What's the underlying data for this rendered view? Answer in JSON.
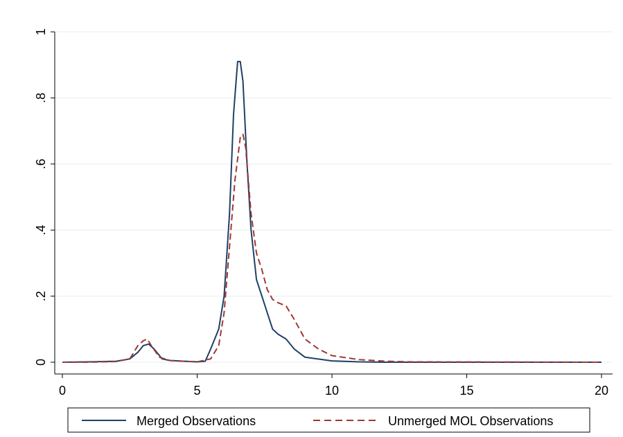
{
  "chart_data": {
    "type": "line",
    "title": "",
    "xlabel": "",
    "ylabel": "",
    "xlim": [
      0,
      20
    ],
    "ylim": [
      0,
      1
    ],
    "xticks": [
      0,
      5,
      10,
      15,
      20
    ],
    "yticks": [
      0,
      0.2,
      0.4,
      0.6,
      0.8,
      1
    ],
    "ytick_labels": [
      "0",
      ".2",
      ".4",
      ".6",
      ".8",
      "1"
    ],
    "grid": true,
    "legend_position": "bottom",
    "series": [
      {
        "name": "Merged Observations",
        "color": "#1f3f66",
        "dash": "solid",
        "points": [
          [
            0,
            0
          ],
          [
            1,
            0.001
          ],
          [
            2,
            0.003
          ],
          [
            2.5,
            0.01
          ],
          [
            2.8,
            0.03
          ],
          [
            3.0,
            0.05
          ],
          [
            3.2,
            0.055
          ],
          [
            3.4,
            0.04
          ],
          [
            3.7,
            0.01
          ],
          [
            4.0,
            0.005
          ],
          [
            5.0,
            0.001
          ],
          [
            5.3,
            0.003
          ],
          [
            5.5,
            0.04
          ],
          [
            5.8,
            0.1
          ],
          [
            6.0,
            0.2
          ],
          [
            6.2,
            0.45
          ],
          [
            6.35,
            0.75
          ],
          [
            6.5,
            0.91
          ],
          [
            6.6,
            0.91
          ],
          [
            6.7,
            0.85
          ],
          [
            6.85,
            0.6
          ],
          [
            7.0,
            0.4
          ],
          [
            7.2,
            0.25
          ],
          [
            7.4,
            0.2
          ],
          [
            7.6,
            0.15
          ],
          [
            7.8,
            0.1
          ],
          [
            8.0,
            0.085
          ],
          [
            8.3,
            0.07
          ],
          [
            8.6,
            0.04
          ],
          [
            9.0,
            0.015
          ],
          [
            10,
            0.004
          ],
          [
            11,
            0.001
          ],
          [
            12,
            0
          ],
          [
            20,
            0
          ]
        ]
      },
      {
        "name": "Unmerged MOL Observations",
        "color": "#a03636",
        "dash": "dashed",
        "points": [
          [
            0,
            0
          ],
          [
            1,
            0
          ],
          [
            2,
            0.002
          ],
          [
            2.5,
            0.01
          ],
          [
            2.8,
            0.05
          ],
          [
            3.0,
            0.065
          ],
          [
            3.15,
            0.07
          ],
          [
            3.3,
            0.05
          ],
          [
            3.6,
            0.015
          ],
          [
            4.0,
            0.005
          ],
          [
            5.0,
            0.001
          ],
          [
            5.5,
            0.01
          ],
          [
            5.8,
            0.05
          ],
          [
            6.0,
            0.15
          ],
          [
            6.2,
            0.35
          ],
          [
            6.4,
            0.55
          ],
          [
            6.6,
            0.68
          ],
          [
            6.7,
            0.69
          ],
          [
            6.8,
            0.65
          ],
          [
            7.0,
            0.45
          ],
          [
            7.2,
            0.33
          ],
          [
            7.4,
            0.28
          ],
          [
            7.6,
            0.22
          ],
          [
            7.8,
            0.19
          ],
          [
            8.0,
            0.18
          ],
          [
            8.3,
            0.17
          ],
          [
            8.6,
            0.13
          ],
          [
            9.0,
            0.07
          ],
          [
            9.5,
            0.04
          ],
          [
            10,
            0.02
          ],
          [
            11,
            0.008
          ],
          [
            12,
            0.003
          ],
          [
            13,
            0.001
          ],
          [
            20,
            0
          ]
        ]
      }
    ]
  },
  "legend": {
    "items": [
      {
        "label": "Merged Observations"
      },
      {
        "label": "Unmerged MOL Observations"
      }
    ]
  }
}
